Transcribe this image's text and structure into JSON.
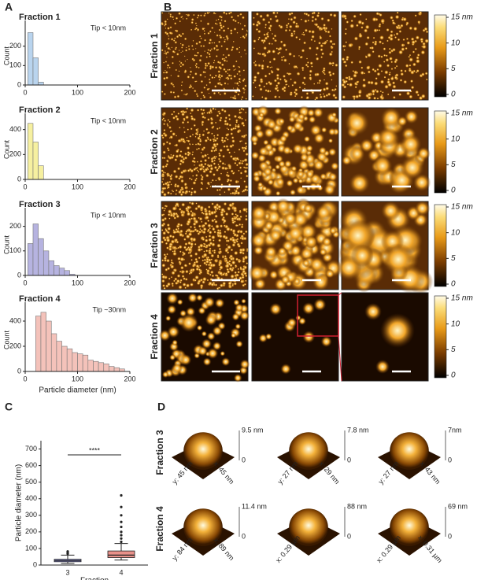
{
  "panel_labels": [
    "A",
    "B",
    "C",
    "D"
  ],
  "chart_data": [
    {
      "type": "histogram",
      "title": "Fraction 1",
      "annotation": "Tip < 10nm",
      "ylabel": "Count",
      "bins": [
        5,
        15,
        25,
        35
      ],
      "values": [
        270,
        140,
        15
      ],
      "color": "#b9d4ee",
      "xlim": [
        0,
        200
      ],
      "xticks": [
        0,
        100,
        200
      ],
      "ylim": [
        0,
        300
      ],
      "yticks": [
        0,
        100,
        200
      ]
    },
    {
      "type": "histogram",
      "title": "Fraction 2",
      "annotation": "Tip < 10nm",
      "ylabel": "Count",
      "bins": [
        5,
        15,
        25,
        35
      ],
      "values": [
        450,
        300,
        110
      ],
      "color": "#f6f0a0",
      "xlim": [
        0,
        200
      ],
      "xticks": [
        0,
        100,
        200
      ],
      "ylim": [
        0,
        480
      ],
      "yticks": [
        0,
        200,
        400
      ]
    },
    {
      "type": "histogram",
      "title": "Fraction 3",
      "annotation": "Tip < 10nm",
      "ylabel": "Count",
      "bins": [
        5,
        15,
        25,
        35,
        45,
        55,
        65,
        75,
        85,
        95
      ],
      "values": [
        130,
        210,
        150,
        100,
        60,
        40,
        30,
        20,
        5
      ],
      "color": "#b6b3e0",
      "xlim": [
        0,
        200
      ],
      "xticks": [
        0,
        100,
        200
      ],
      "ylim": [
        0,
        250
      ],
      "yticks": [
        0,
        100,
        200
      ]
    },
    {
      "type": "histogram",
      "title": "Fraction 4",
      "annotation": "Tip ~30nm",
      "ylabel": "Count",
      "xlabel": "Particle diameter (nm)",
      "bins": [
        20,
        30,
        40,
        50,
        60,
        70,
        80,
        90,
        100,
        110,
        120,
        130,
        140,
        150,
        160,
        170,
        180,
        190
      ],
      "values": [
        440,
        470,
        400,
        300,
        240,
        200,
        180,
        150,
        140,
        130,
        90,
        80,
        70,
        60,
        40,
        30,
        20
      ],
      "color": "#f4c2ba",
      "xlim": [
        0,
        200
      ],
      "xticks": [
        0,
        100,
        200
      ],
      "ylim": [
        0,
        500
      ],
      "yticks": [
        0,
        200,
        400
      ]
    },
    {
      "type": "box",
      "ylabel": "Particle diameter (nm)",
      "xlabel": "Fraction",
      "categories": [
        "3",
        "4"
      ],
      "significance": "****",
      "ylim": [
        0,
        750
      ],
      "yticks": [
        0,
        100,
        200,
        300,
        400,
        500,
        600,
        700
      ],
      "boxes": [
        {
          "low": 10,
          "q1": 20,
          "median": 27,
          "q3": 35,
          "high": 60,
          "outliers": [
            68,
            75,
            82
          ],
          "color": "#8f92d4"
        },
        {
          "low": 30,
          "q1": 45,
          "median": 60,
          "q3": 85,
          "high": 130,
          "outliers": [
            140,
            160,
            180,
            200,
            230,
            260,
            300,
            350,
            420
          ],
          "color": "#e9918a"
        }
      ]
    }
  ],
  "afm": {
    "rows": [
      "Fraction 1",
      "Fraction 2",
      "Fraction 3",
      "Fraction 4"
    ],
    "colorbar_ticks": [
      {
        "value": 15,
        "label": "15 nm"
      },
      10,
      5,
      0
    ]
  },
  "surfaces": {
    "rows": [
      "Fraction 3",
      "Fraction 4"
    ],
    "items": [
      {
        "height": "9.5 nm",
        "zero": "0",
        "left": "y: 45 nm",
        "right": "x: 45 nm"
      },
      {
        "height": "7.8 nm",
        "zero": "0",
        "left": "y: 27 nm",
        "right": "x: 29 nm"
      },
      {
        "height": "7nm",
        "zero": "0",
        "left": "y: 27 nm",
        "right": "x: 43 nm"
      },
      {
        "height": "11.4 nm",
        "zero": "0",
        "left": "y: 84 nm",
        "right": "x: 89 nm"
      },
      {
        "height": "88 nm",
        "zero": "0",
        "left": "x: 0.29 µm"
      },
      {
        "height": "69 nm",
        "zero": "0",
        "left": "x: 0.29 µm",
        "right": "x: 0.31 µm"
      }
    ]
  }
}
